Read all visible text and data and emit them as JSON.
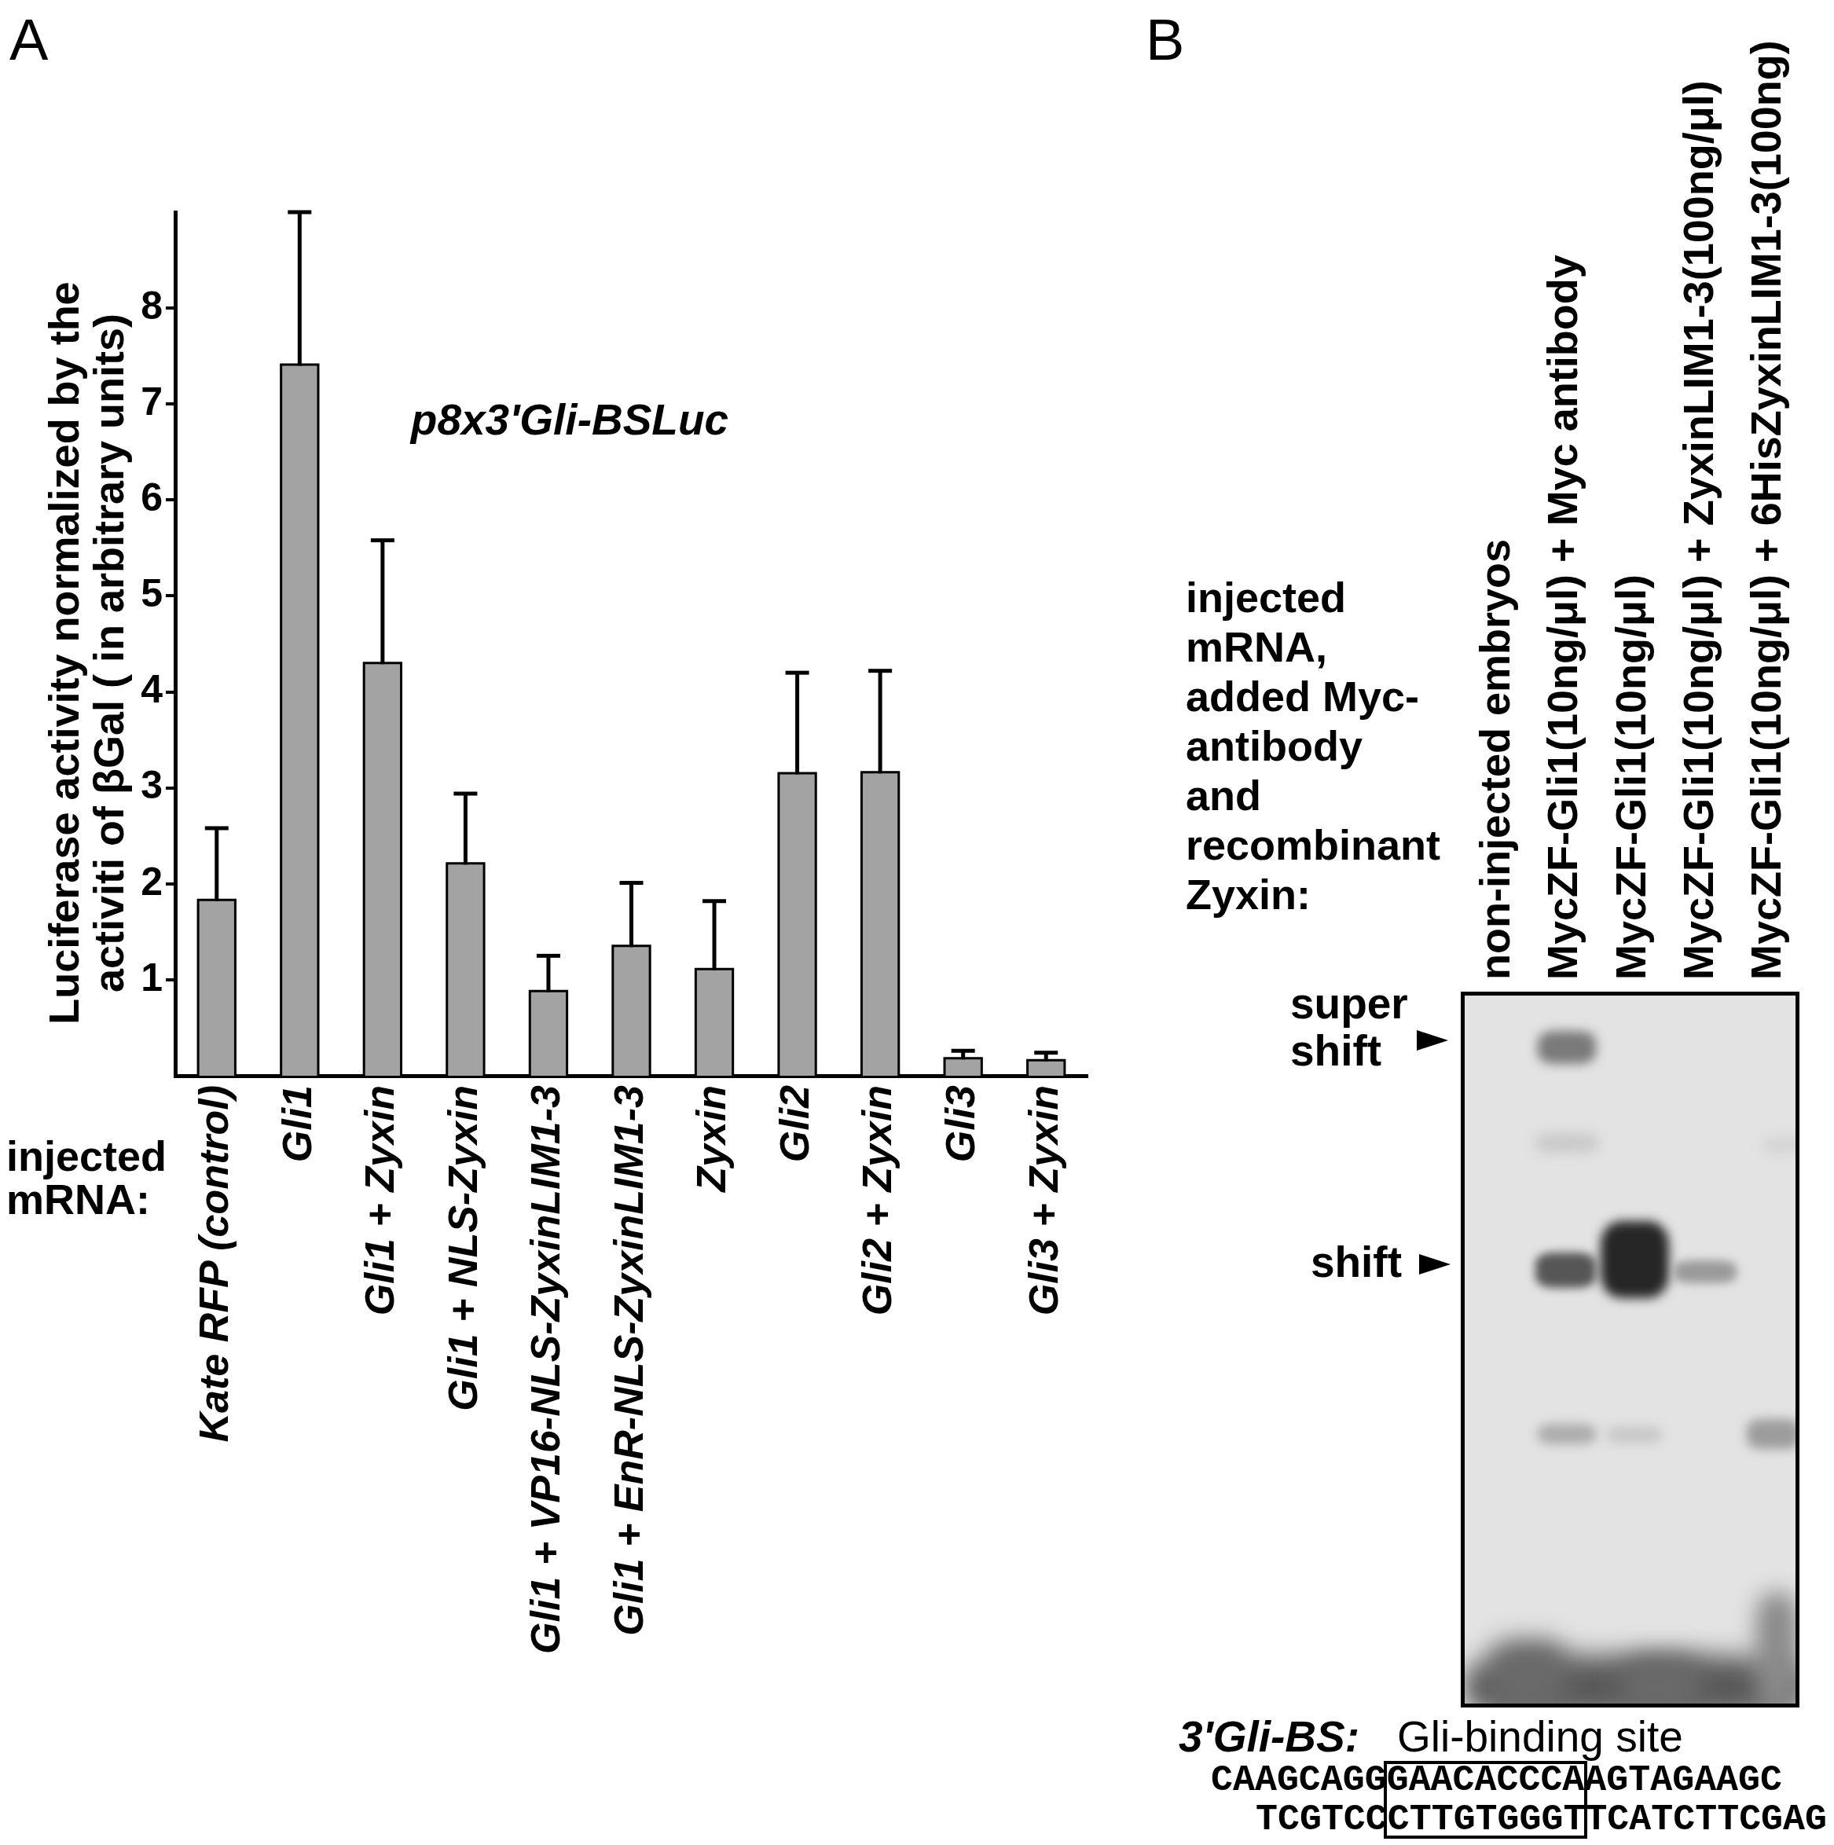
{
  "chart_data": [
    {
      "type": "bar",
      "title": "A",
      "ylabel": "Luciferase activity normalized by the activiti of βGal ( in arbitrary units)",
      "xlabel": "injected mRNA:",
      "annotations": [
        "p8x3'Gli-BSLuc"
      ],
      "categories": [
        "Kate RFP (control)",
        "Gli1",
        "Gli1 + Zyxin",
        "Gli1 + NLS-Zyxin",
        "Gli1 + VP16-NLS-ZyxinLIM1-3",
        "Gli1 + EnR-NLS-ZyxinLIM1-3",
        "Zyxin",
        "Gli2",
        "Gli2 + Zyxin",
        "Gli3",
        "Gli3 + Zyxin"
      ],
      "values": [
        1.82,
        7.4,
        4.29,
        2.2,
        0.87,
        1.34,
        1.1,
        3.14,
        3.15,
        0.17,
        0.15
      ],
      "errors": [
        [
          1.82,
          2.58
        ],
        [
          7.4,
          9.0
        ],
        [
          4.29,
          5.58
        ],
        [
          2.2,
          2.94
        ],
        [
          0.87,
          1.25
        ],
        [
          1.34,
          2.01
        ],
        [
          1.1,
          1.82
        ],
        [
          3.14,
          4.2
        ],
        [
          3.15,
          4.22
        ],
        [
          0.17,
          0.26
        ],
        [
          0.15,
          0.24
        ]
      ],
      "color": "#a3a3a3",
      "ylim": [
        0,
        9
      ],
      "yticks": [
        1,
        2,
        3,
        4,
        5,
        6,
        7,
        8
      ],
      "grid": false
    },
    {
      "type": "other",
      "title": "B",
      "categories": [
        "non-injected embryos",
        "MycZF-Gli1(10ng/μl) + Myc antibody",
        "MycZF-Gli1(10ng/μl)",
        "MycZF-Gli1(10ng/μl) + ZyxinLIM1-3(100ng/μl)",
        "MycZF-Gli1(10ng/μl) + 6HisZyxinLIM1-3(100ng)"
      ],
      "annotations": [
        "injected mRNA, added Myc-antibody and recombinant Zyxin:",
        "super shift",
        "shift",
        "3'Gli-BS:",
        "Gli-binding site",
        "CAAGCAGGGAACACCCAAGTAGAAGC",
        "TCGTCCCTTGTGGGTTCATCTTCGAG"
      ]
    }
  ]
}
